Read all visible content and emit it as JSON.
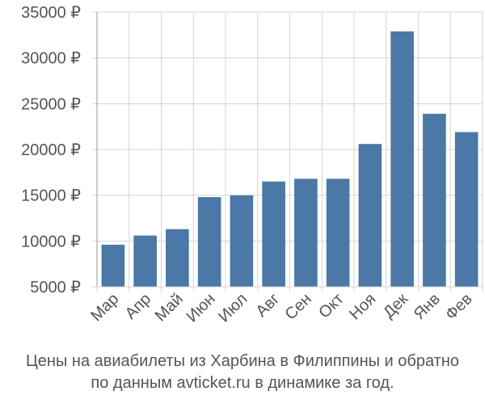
{
  "colors": {
    "bar": "#4b78a6",
    "grid": "#d4d4d4",
    "axis": "#999999",
    "text": "#555555"
  },
  "caption": {
    "line1": "Цены на авиабилеты из Харбина в Филиппины и обратно",
    "line2": "по данным avticket.ru в динамике за год."
  },
  "chart_data": {
    "type": "bar",
    "categories": [
      "Мар",
      "Апр",
      "Май",
      "Июн",
      "Июл",
      "Авг",
      "Сен",
      "Окт",
      "Ноя",
      "Дек",
      "Янв",
      "Фев"
    ],
    "values": [
      9600,
      10600,
      11300,
      14800,
      15000,
      16500,
      16800,
      16800,
      20600,
      32900,
      23900,
      21900
    ],
    "ylim": [
      5000,
      35000
    ],
    "yticks": [
      {
        "value": 5000,
        "label": "5000 ₽"
      },
      {
        "value": 10000,
        "label": "10000 ₽"
      },
      {
        "value": 15000,
        "label": "15000 ₽"
      },
      {
        "value": 20000,
        "label": "20000 ₽"
      },
      {
        "value": 25000,
        "label": "25000 ₽"
      },
      {
        "value": 30000,
        "label": "30000 ₽"
      },
      {
        "value": 35000,
        "label": "35000 ₽"
      }
    ],
    "grid": true,
    "title": "",
    "xlabel": "",
    "ylabel": ""
  }
}
